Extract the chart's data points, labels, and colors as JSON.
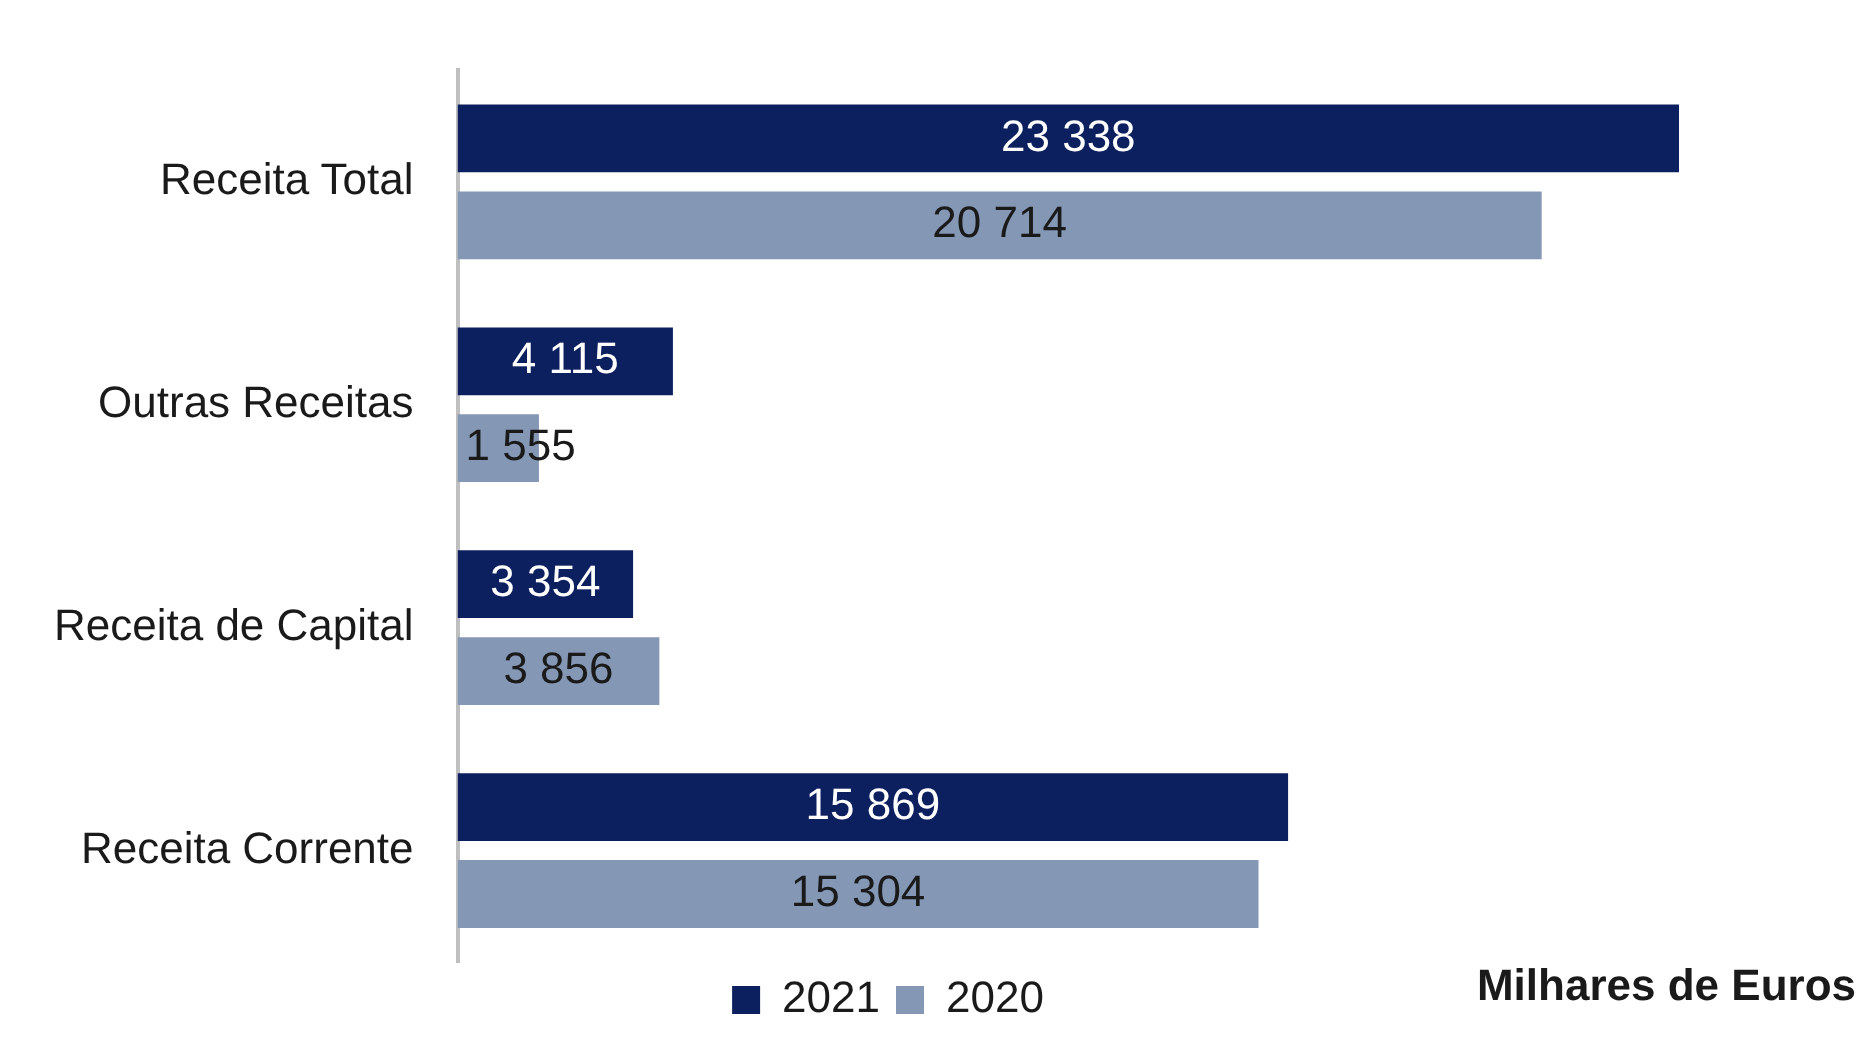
{
  "chart_data": {
    "type": "bar",
    "orientation": "horizontal",
    "categories": [
      "Receita Total",
      "Outras Receitas",
      "Receita de Capital",
      "Receita Corrente"
    ],
    "series": [
      {
        "name": "2021",
        "color": "#0c1f5e",
        "values": [
          23338,
          4115,
          3354,
          15869
        ],
        "value_labels": [
          "23 338",
          "4 115",
          "3 354",
          "15 869"
        ]
      },
      {
        "name": "2020",
        "color": "#8497b5",
        "values": [
          20714,
          1555,
          3856,
          15304
        ],
        "value_labels": [
          "20 714",
          "1 555",
          "3 856",
          "15 304"
        ]
      }
    ],
    "legend": "bottom",
    "grid": false,
    "tick_labels": "y",
    "annotations": [
      "Milhares de Euros"
    ]
  }
}
